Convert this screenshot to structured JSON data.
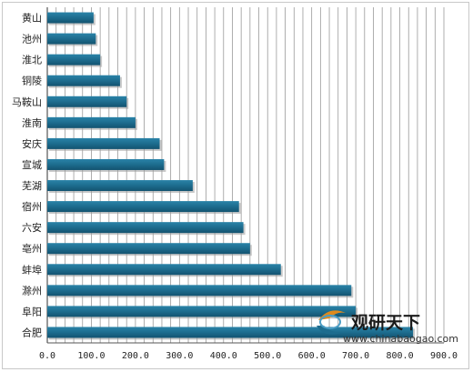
{
  "chart_data": {
    "type": "bar",
    "orientation": "horizontal",
    "categories": [
      "黄山",
      "池州",
      "淮北",
      "铜陵",
      "马鞍山",
      "淮南",
      "安庆",
      "宣城",
      "芜湖",
      "宿州",
      "六安",
      "亳州",
      "蚌埠",
      "滁州",
      "阜阳",
      "合肥"
    ],
    "values": [
      105,
      110,
      120,
      165,
      180,
      200,
      255,
      265,
      330,
      435,
      445,
      460,
      530,
      690,
      700,
      830
    ],
    "xlim": [
      0,
      900
    ],
    "xticks": [
      "0.0",
      "100.0",
      "200.0",
      "300.0",
      "400.0",
      "500.0",
      "600.0",
      "700.0",
      "800.0",
      "900.0"
    ],
    "title": "",
    "xlabel": "",
    "ylabel": "",
    "grid": "vertical",
    "bar_color": "#1d6c8e",
    "grid_color": "#9a9a9a"
  },
  "watermark": {
    "brand": "观研天下",
    "url": "www.chinabaogao.com"
  }
}
